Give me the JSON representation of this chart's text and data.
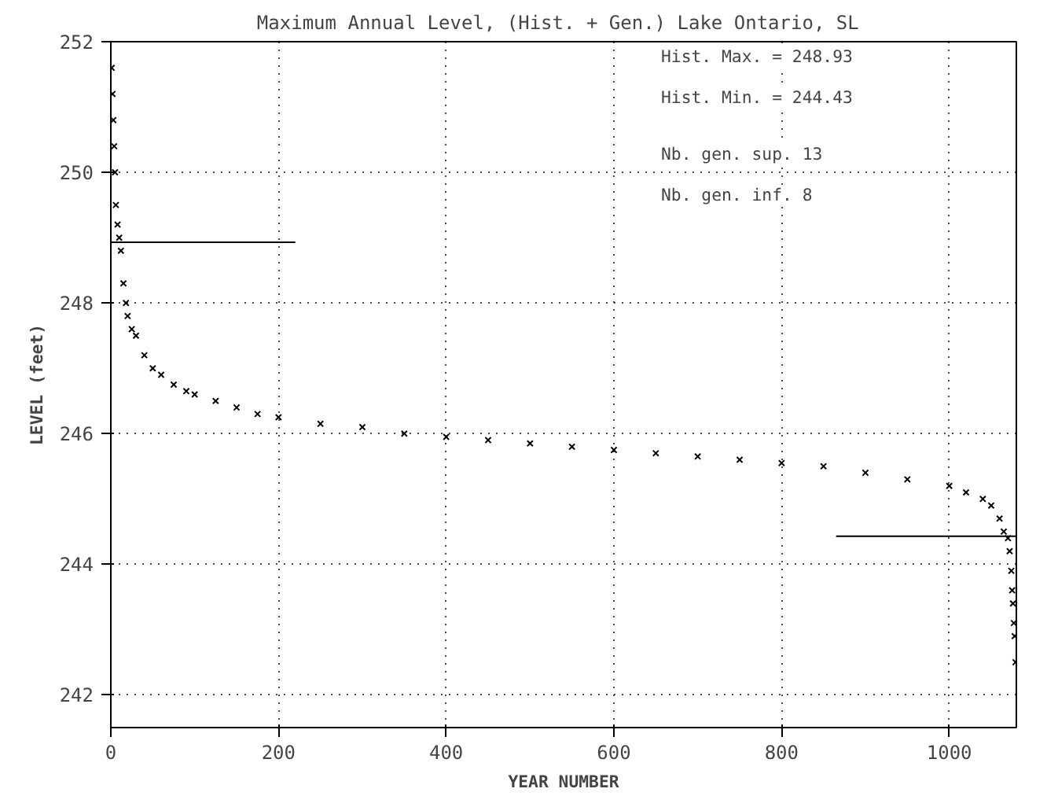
{
  "chart_data": {
    "type": "scatter",
    "title": "Maximum Annual Level, (Hist. + Gen.)  Lake Ontario, SL",
    "xlabel": "YEAR NUMBER",
    "ylabel": "LEVEL (feet)",
    "xlim": [
      0,
      1080
    ],
    "ylim": [
      241.5,
      252
    ],
    "xticks": [
      0,
      200,
      400,
      600,
      800,
      1000
    ],
    "yticks": [
      242,
      244,
      246,
      248,
      250,
      252
    ],
    "grid": true,
    "annotations": [
      "Hist. Max. = 248.93",
      "Hist. Min. = 244.43",
      "Nb. gen. sup. 13",
      "Nb. gen. inf.  8"
    ],
    "series": [
      {
        "color": "#000000",
        "marker": "cross",
        "x": [
          1,
          2,
          3,
          4,
          5,
          6,
          8,
          10,
          12,
          15,
          18,
          20,
          25,
          30,
          40,
          50,
          60,
          75,
          90,
          100,
          125,
          150,
          175,
          200,
          250,
          300,
          350,
          400,
          450,
          500,
          550,
          600,
          650,
          700,
          750,
          800,
          850,
          900,
          950,
          1000,
          1020,
          1040,
          1050,
          1060,
          1065,
          1070,
          1072,
          1074,
          1075,
          1076,
          1077,
          1078,
          1079
        ],
        "values": [
          251.6,
          251.2,
          250.8,
          250.4,
          250.0,
          249.5,
          249.2,
          249.0,
          248.8,
          248.3,
          248.0,
          247.8,
          247.6,
          247.5,
          247.2,
          247.0,
          246.9,
          246.75,
          246.65,
          246.6,
          246.5,
          246.4,
          246.3,
          246.25,
          246.15,
          246.1,
          246.0,
          245.95,
          245.9,
          245.85,
          245.8,
          245.75,
          245.7,
          245.65,
          245.6,
          245.55,
          245.5,
          245.4,
          245.3,
          245.2,
          245.1,
          245.0,
          244.9,
          244.7,
          244.5,
          244.4,
          244.2,
          243.9,
          243.6,
          243.4,
          243.1,
          242.9,
          242.5
        ]
      },
      {
        "type": "line",
        "marker": "none",
        "color": "#000000",
        "x": [
          0,
          220
        ],
        "values": [
          248.93,
          248.93
        ]
      },
      {
        "type": "line",
        "marker": "none",
        "color": "#000000",
        "x": [
          865,
          1080
        ],
        "values": [
          244.43,
          244.43
        ]
      }
    ]
  }
}
